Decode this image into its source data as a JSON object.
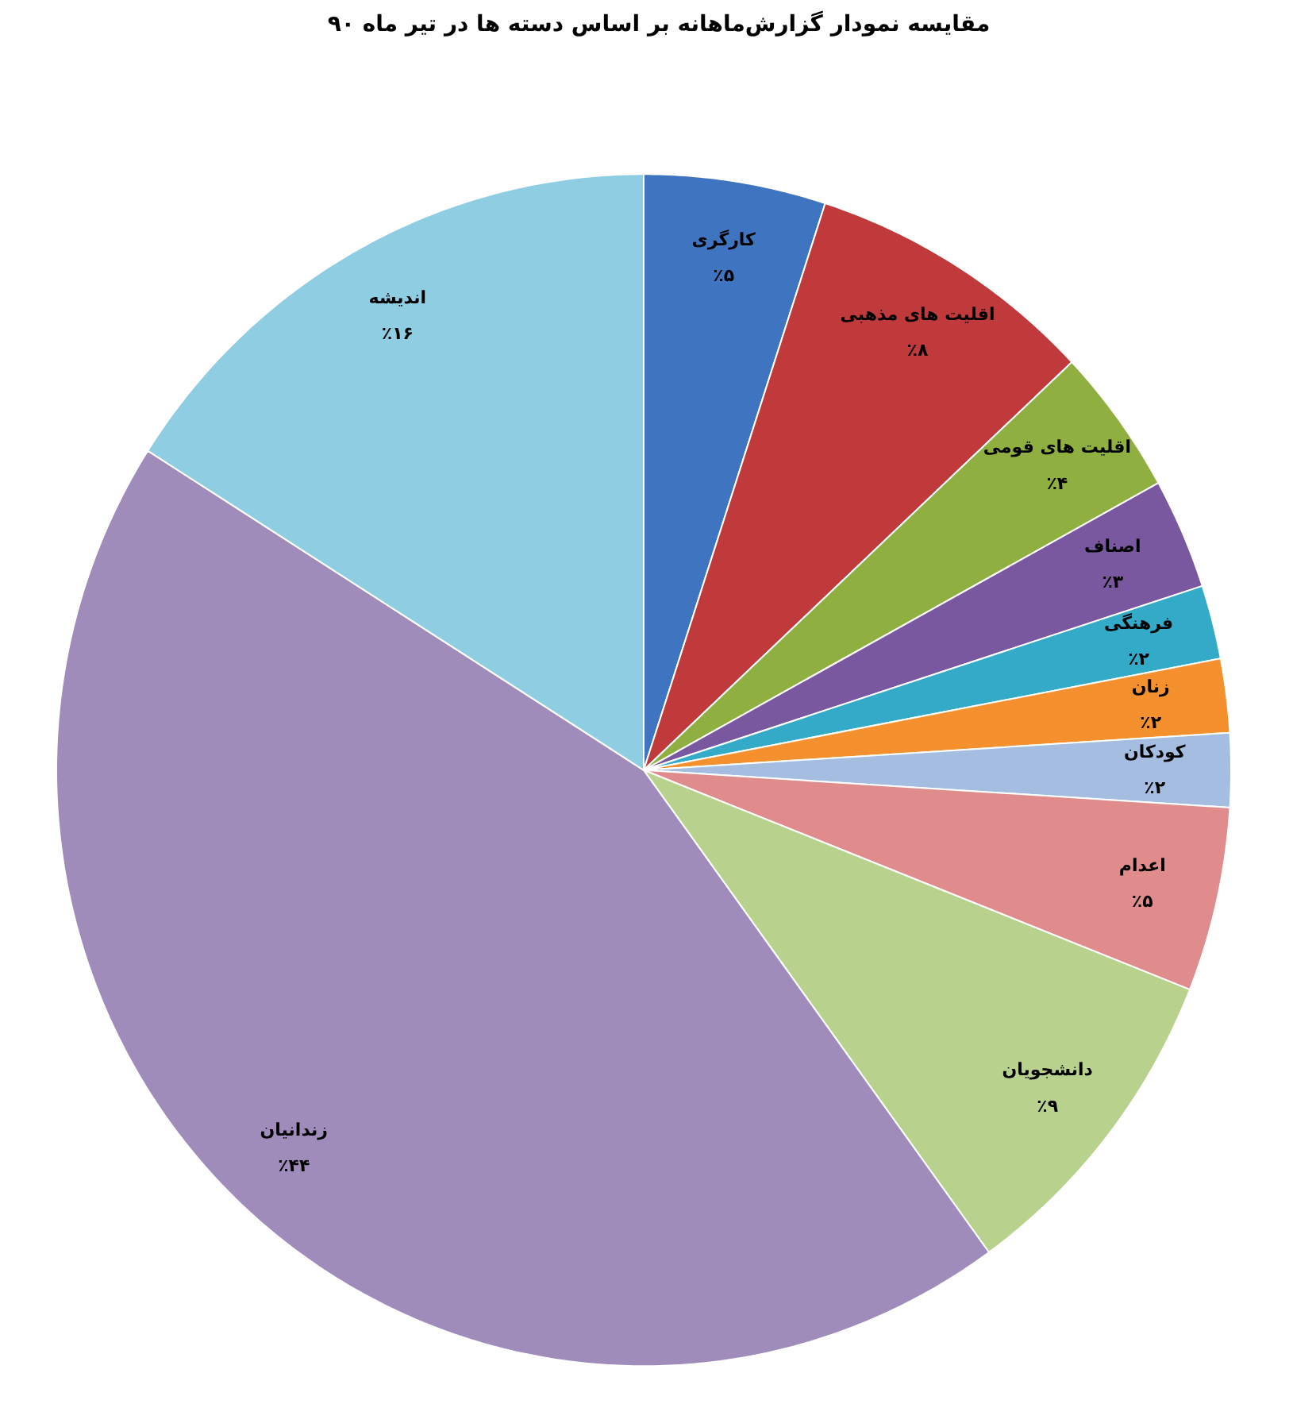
{
  "chart_data": {
    "type": "pie",
    "title": "مقایسه نمودار گزارش‌ماهانه بر اساس دسته ها در تیر ماه ۹۰",
    "categories": [
      "کارگری",
      "اقلیت های مذهبی",
      "اقلیت های قومی",
      "اصناف",
      "فرهنگی",
      "زنان",
      "کودکان",
      "اعدام",
      "دانشجویان",
      "زندانیان",
      "اندیشه"
    ],
    "values": [
      5,
      8,
      4,
      3,
      2,
      2,
      2,
      5,
      9,
      44,
      16
    ],
    "colors": [
      "#3f74c0",
      "#c0393b",
      "#8fb040",
      "#7a58a0",
      "#33aac8",
      "#f5902e",
      "#a4bde0",
      "#e08c8c",
      "#b8d28e",
      "#9f8cba",
      "#8fcde2"
    ],
    "value_labels": [
      "٪۵",
      "٪۸",
      "٪۴",
      "٪۳",
      "٪۲",
      "٪۲",
      "٪۲",
      "٪۵",
      "٪۹",
      "٪۴۴",
      "٪۱۶"
    ]
  }
}
